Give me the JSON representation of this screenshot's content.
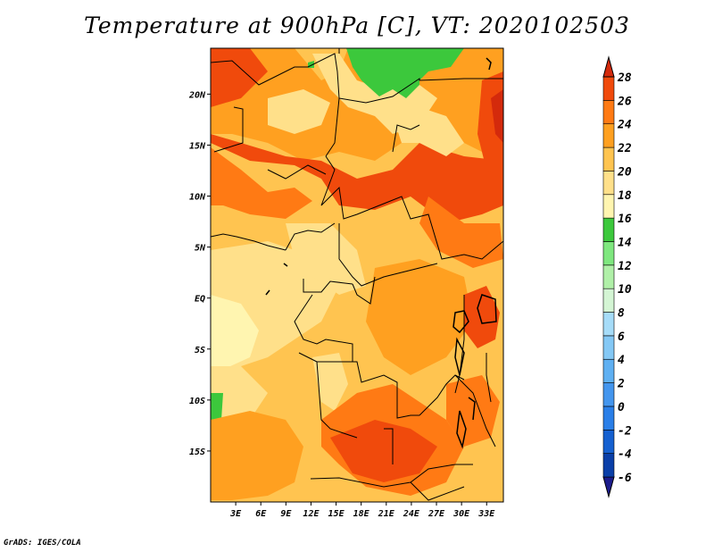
{
  "title": "Temperature at 900hPa [C], VT: 2020102503",
  "footer": "GrADS: IGES/COLA",
  "map": {
    "lon_range": [
      0,
      35
    ],
    "lat_range": [
      -20,
      24.5
    ],
    "lat_ticks": [
      {
        "value": 20,
        "label": "20N"
      },
      {
        "value": 15,
        "label": "15N"
      },
      {
        "value": 10,
        "label": "10N"
      },
      {
        "value": 5,
        "label": "5N"
      },
      {
        "value": 0,
        "label": "EQ"
      },
      {
        "value": -5,
        "label": "5S"
      },
      {
        "value": -10,
        "label": "10S"
      },
      {
        "value": -15,
        "label": "15S"
      }
    ],
    "lon_ticks": [
      {
        "value": 3,
        "label": "3E"
      },
      {
        "value": 6,
        "label": "6E"
      },
      {
        "value": 9,
        "label": "9E"
      },
      {
        "value": 12,
        "label": "12E"
      },
      {
        "value": 15,
        "label": "15E"
      },
      {
        "value": 18,
        "label": "18E"
      },
      {
        "value": 21,
        "label": "21E"
      },
      {
        "value": 24,
        "label": "24E"
      },
      {
        "value": 27,
        "label": "27E"
      },
      {
        "value": 30,
        "label": "30E"
      },
      {
        "value": 33,
        "label": "33E"
      }
    ]
  },
  "colorbar": {
    "levels": [
      "-6",
      "-4",
      "-2",
      "0",
      "2",
      "4",
      "6",
      "8",
      "10",
      "12",
      "14",
      "16",
      "18",
      "20",
      "22",
      "24",
      "26",
      "28"
    ],
    "colors": [
      "#1c1c8c",
      "#0a3fa8",
      "#1560d0",
      "#2a7fe8",
      "#4496ee",
      "#5fb0f2",
      "#84c8f5",
      "#a6dcf8",
      "#d4f5d4",
      "#b0f0a8",
      "#7fe77f",
      "#3cc83c",
      "#fff5b0",
      "#ffe08a",
      "#ffc450",
      "#ffa020",
      "#ff7a14",
      "#f04a0c",
      "#d42a0c"
    ]
  }
}
